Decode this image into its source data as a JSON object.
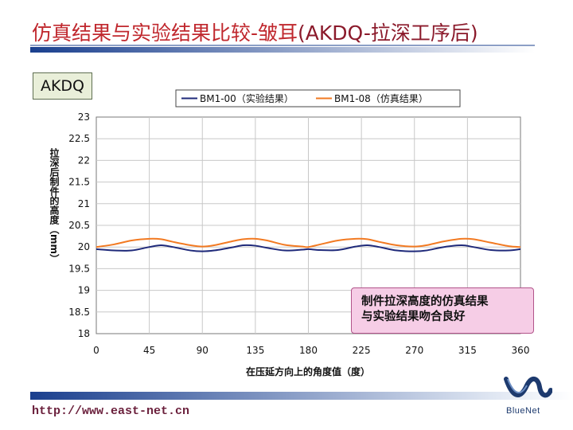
{
  "slide": {
    "title_cn": "仿真结果与实验结果比较-皱耳",
    "title_en": "(AKDQ-拉深工序后)",
    "tag": "AKDQ",
    "callout_line1": "制件拉深高度的仿真结果",
    "callout_line2": "与实验结果吻合良好",
    "url": "http://www.east-net.cn",
    "logo_text": "BlueNet"
  },
  "colors": {
    "title": "#c0282e",
    "series_experiment": "#1f2a7a",
    "series_simulation": "#f27a22",
    "plot_bg": "#ffffff",
    "grid": "#c8c8c8",
    "callout_bg": "#f6cde6",
    "bar_dark": "#1a3f8e"
  },
  "chart_data": {
    "type": "line",
    "xlabel": "在压延方向上的角度值（度）",
    "ylabel": "拉深后制件的高度（mm）",
    "xlim": [
      0,
      360
    ],
    "ylim": [
      18,
      23
    ],
    "xticks": [
      0,
      45,
      90,
      135,
      180,
      225,
      270,
      315,
      360
    ],
    "yticks": [
      18,
      18.5,
      19,
      19.5,
      20,
      20.5,
      21,
      21.5,
      22,
      22.5,
      23
    ],
    "grid": true,
    "legend_position": "top",
    "series": [
      {
        "name": "BM1-00（实验结果）",
        "x": [
          0,
          15,
          30,
          45,
          55,
          65,
          80,
          90,
          100,
          115,
          125,
          135,
          145,
          160,
          175,
          180,
          190,
          205,
          220,
          230,
          240,
          255,
          270,
          280,
          295,
          310,
          320,
          335,
          350,
          360
        ],
        "y": [
          19.95,
          19.92,
          19.92,
          20.0,
          20.04,
          20.0,
          19.92,
          19.9,
          19.92,
          19.99,
          20.04,
          20.03,
          19.98,
          19.92,
          19.94,
          19.95,
          19.93,
          19.93,
          20.01,
          20.04,
          20.0,
          19.92,
          19.9,
          19.92,
          20.0,
          20.04,
          20.0,
          19.93,
          19.92,
          19.95
        ]
      },
      {
        "name": "BM1-08（仿真结果）",
        "x": [
          0,
          15,
          30,
          45,
          55,
          65,
          80,
          90,
          100,
          115,
          125,
          135,
          145,
          160,
          175,
          180,
          190,
          205,
          220,
          230,
          240,
          255,
          270,
          280,
          295,
          310,
          320,
          335,
          350,
          360
        ],
        "y": [
          20.0,
          20.06,
          20.15,
          20.19,
          20.18,
          20.12,
          20.04,
          20.01,
          20.04,
          20.13,
          20.18,
          20.19,
          20.15,
          20.05,
          20.01,
          20.0,
          20.06,
          20.15,
          20.19,
          20.18,
          20.12,
          20.04,
          20.01,
          20.04,
          20.13,
          20.19,
          20.18,
          20.1,
          20.02,
          20.0
        ]
      }
    ]
  }
}
